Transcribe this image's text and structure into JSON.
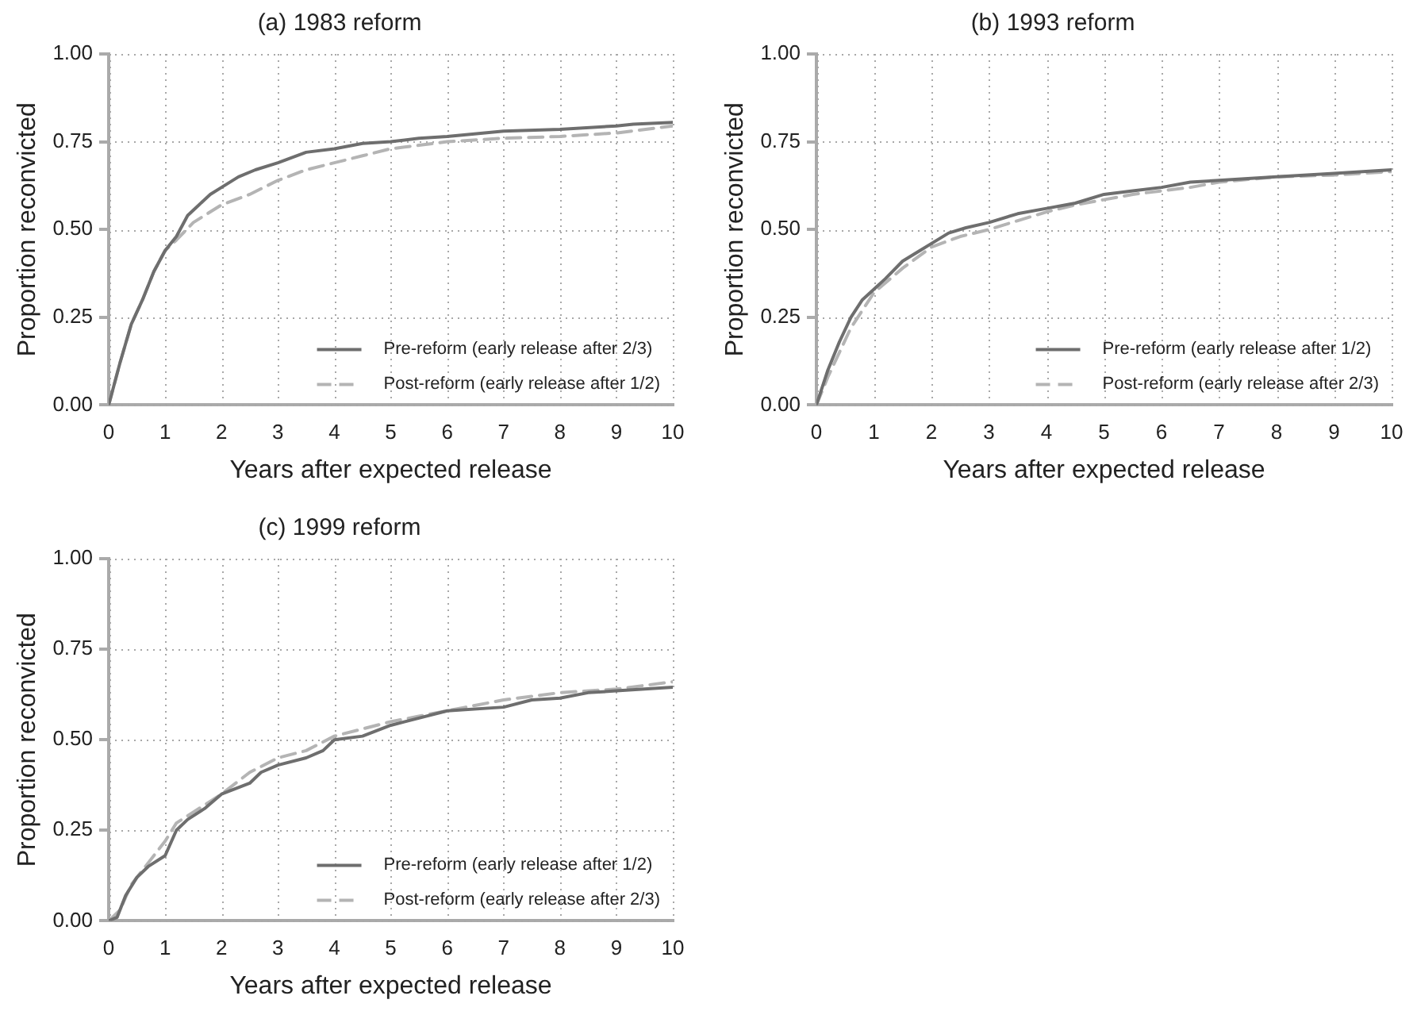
{
  "chart_data": [
    {
      "type": "line",
      "title": "(a) 1983 reform",
      "xlabel": "Years after expected release",
      "ylabel": "Proportion reconvicted",
      "xlim": [
        0,
        10
      ],
      "ylim": [
        0,
        1
      ],
      "xticks": [
        0,
        1,
        2,
        3,
        4,
        5,
        6,
        7,
        8,
        9,
        10
      ],
      "yticks": [
        {
          "value": 0,
          "label": "0.00"
        },
        {
          "value": 0.25,
          "label": "0.25"
        },
        {
          "value": 0.5,
          "label": "0.50"
        },
        {
          "value": 0.75,
          "label": "0.75"
        },
        {
          "value": 1,
          "label": "1.00"
        }
      ],
      "grid": true,
      "legend": "bottom right",
      "marker": "none",
      "series": [
        {
          "name": "Pre-reform (early release after 2/3)",
          "color": "#6e6e6e",
          "line_style": "solid",
          "x": [
            0,
            0.2,
            0.4,
            0.6,
            0.8,
            1,
            1.2,
            1.4,
            1.6,
            1.8,
            2,
            2.3,
            2.6,
            3,
            3.5,
            4,
            4.5,
            5,
            5.5,
            6,
            7,
            8,
            9,
            9.3,
            10
          ],
          "values": [
            0,
            0.12,
            0.23,
            0.3,
            0.38,
            0.44,
            0.48,
            0.54,
            0.57,
            0.6,
            0.62,
            0.65,
            0.67,
            0.69,
            0.72,
            0.73,
            0.745,
            0.75,
            0.76,
            0.765,
            0.78,
            0.785,
            0.795,
            0.8,
            0.805
          ]
        },
        {
          "name": "Post-reform (early release after 1/2)",
          "color": "#b4b4b4",
          "line_style": "dashed",
          "x": [
            0,
            0.2,
            0.4,
            0.6,
            0.8,
            1,
            1.2,
            1.5,
            2,
            2.5,
            3,
            3.5,
            4,
            4.5,
            5,
            5.5,
            6,
            7,
            8,
            9,
            10
          ],
          "values": [
            0,
            0.12,
            0.23,
            0.3,
            0.38,
            0.44,
            0.47,
            0.52,
            0.57,
            0.6,
            0.64,
            0.67,
            0.69,
            0.71,
            0.73,
            0.74,
            0.75,
            0.76,
            0.765,
            0.775,
            0.795
          ]
        }
      ]
    },
    {
      "type": "line",
      "title": "(b) 1993 reform",
      "xlabel": "Years after expected release",
      "ylabel": "Proportion reconvicted",
      "xlim": [
        0,
        10
      ],
      "ylim": [
        0,
        1
      ],
      "xticks": [
        0,
        1,
        2,
        3,
        4,
        5,
        6,
        7,
        8,
        9,
        10
      ],
      "yticks": [
        {
          "value": 0,
          "label": "0.00"
        },
        {
          "value": 0.25,
          "label": "0.25"
        },
        {
          "value": 0.5,
          "label": "0.50"
        },
        {
          "value": 0.75,
          "label": "0.75"
        },
        {
          "value": 1,
          "label": "1.00"
        }
      ],
      "grid": true,
      "legend": "bottom right",
      "marker": "none",
      "series": [
        {
          "name": "Pre-reform (early release after 1/2)",
          "color": "#6e6e6e",
          "line_style": "solid",
          "x": [
            0,
            0.2,
            0.4,
            0.6,
            0.8,
            1,
            1.2,
            1.5,
            1.8,
            2,
            2.3,
            2.6,
            3,
            3.5,
            4,
            4.5,
            5,
            5.5,
            6,
            6.5,
            7,
            8,
            9,
            10
          ],
          "values": [
            0,
            0.1,
            0.18,
            0.25,
            0.3,
            0.33,
            0.36,
            0.41,
            0.44,
            0.46,
            0.49,
            0.505,
            0.52,
            0.545,
            0.56,
            0.575,
            0.6,
            0.61,
            0.62,
            0.635,
            0.64,
            0.65,
            0.66,
            0.67
          ]
        },
        {
          "name": "Post-reform (early release after 2/3)",
          "color": "#b4b4b4",
          "line_style": "dashed",
          "x": [
            0,
            0.2,
            0.4,
            0.6,
            0.8,
            1,
            1.5,
            2,
            2.5,
            3,
            3.5,
            4,
            4.5,
            5,
            5.5,
            6,
            6.5,
            7,
            8,
            9,
            10
          ],
          "values": [
            0,
            0.08,
            0.15,
            0.22,
            0.27,
            0.32,
            0.39,
            0.45,
            0.48,
            0.5,
            0.525,
            0.55,
            0.57,
            0.585,
            0.6,
            0.61,
            0.62,
            0.635,
            0.65,
            0.655,
            0.665
          ]
        }
      ]
    },
    {
      "type": "line",
      "title": "(c) 1999 reform",
      "xlabel": "Years after expected release",
      "ylabel": "Proportion reconvicted",
      "xlim": [
        0,
        10
      ],
      "ylim": [
        0,
        1
      ],
      "xticks": [
        0,
        1,
        2,
        3,
        4,
        5,
        6,
        7,
        8,
        9,
        10
      ],
      "yticks": [
        {
          "value": 0,
          "label": "0.00"
        },
        {
          "value": 0.25,
          "label": "0.25"
        },
        {
          "value": 0.5,
          "label": "0.50"
        },
        {
          "value": 0.75,
          "label": "0.75"
        },
        {
          "value": 1,
          "label": "1.00"
        }
      ],
      "grid": true,
      "legend": "bottom right",
      "marker": "none",
      "series": [
        {
          "name": "Pre-reform (early release after 1/2)",
          "color": "#6e6e6e",
          "line_style": "solid",
          "x": [
            0,
            0.15,
            0.3,
            0.5,
            0.7,
            1,
            1.2,
            1.4,
            1.7,
            2,
            2.5,
            2.7,
            3,
            3.5,
            3.8,
            4,
            4.5,
            5,
            5.5,
            6,
            7,
            7.5,
            8,
            8.5,
            9,
            10
          ],
          "values": [
            0,
            0.01,
            0.07,
            0.12,
            0.15,
            0.18,
            0.25,
            0.28,
            0.31,
            0.35,
            0.38,
            0.41,
            0.43,
            0.45,
            0.47,
            0.5,
            0.51,
            0.54,
            0.56,
            0.58,
            0.59,
            0.61,
            0.615,
            0.63,
            0.635,
            0.645
          ]
        },
        {
          "name": "Post-reform (early release after 2/3)",
          "color": "#b4b4b4",
          "line_style": "dashed",
          "x": [
            0,
            0.2,
            0.4,
            0.7,
            1,
            1.2,
            1.5,
            2,
            2.5,
            3,
            3.5,
            4,
            4.5,
            5,
            5.5,
            6,
            7,
            7.5,
            8,
            9,
            9.5,
            10
          ],
          "values": [
            0,
            0.03,
            0.1,
            0.16,
            0.22,
            0.27,
            0.3,
            0.35,
            0.41,
            0.45,
            0.47,
            0.51,
            0.53,
            0.55,
            0.565,
            0.58,
            0.61,
            0.62,
            0.63,
            0.64,
            0.65,
            0.66
          ]
        }
      ]
    }
  ]
}
